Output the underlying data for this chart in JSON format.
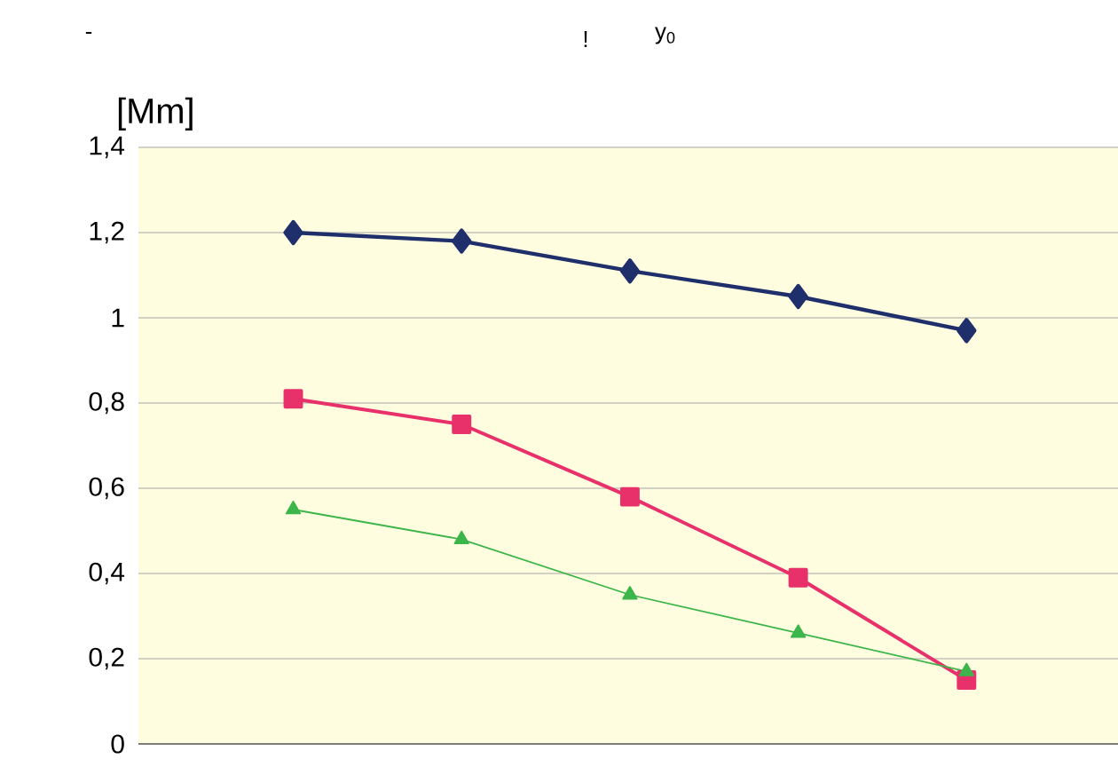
{
  "chart_data": {
    "type": "line",
    "ylabel": "[Mm]",
    "annotations": [
      "-",
      "!",
      "y$_{0}$"
    ],
    "categories": [
      null,
      null,
      null,
      null,
      null
    ],
    "series": [
      {
        "color": "#1f2f6b",
        "marker": "diamond",
        "values": [
          1.2,
          1.18,
          1.11,
          1.05,
          0.97
        ]
      },
      {
        "color": "#e8306a",
        "marker": "square",
        "values": [
          0.81,
          0.75,
          0.58,
          0.39,
          0.15
        ]
      },
      {
        "color": "#3cb54a",
        "marker": "triangle",
        "values": [
          0.55,
          0.48,
          0.35,
          0.26,
          0.17
        ]
      }
    ],
    "ylim": [
      0,
      1.4
    ],
    "yticks": [
      0,
      {
        "value": 0.2,
        "label": "0,2"
      },
      {
        "value": 0.4,
        "label": "0,4"
      },
      {
        "value": 0.6,
        "label": "0,6"
      },
      {
        "value": 0.8,
        "label": "0,8"
      },
      1,
      {
        "value": 1.2,
        "label": "1,2"
      },
      {
        "value": 1.4,
        "label": "1,4"
      }
    ],
    "grid": "y"
  }
}
